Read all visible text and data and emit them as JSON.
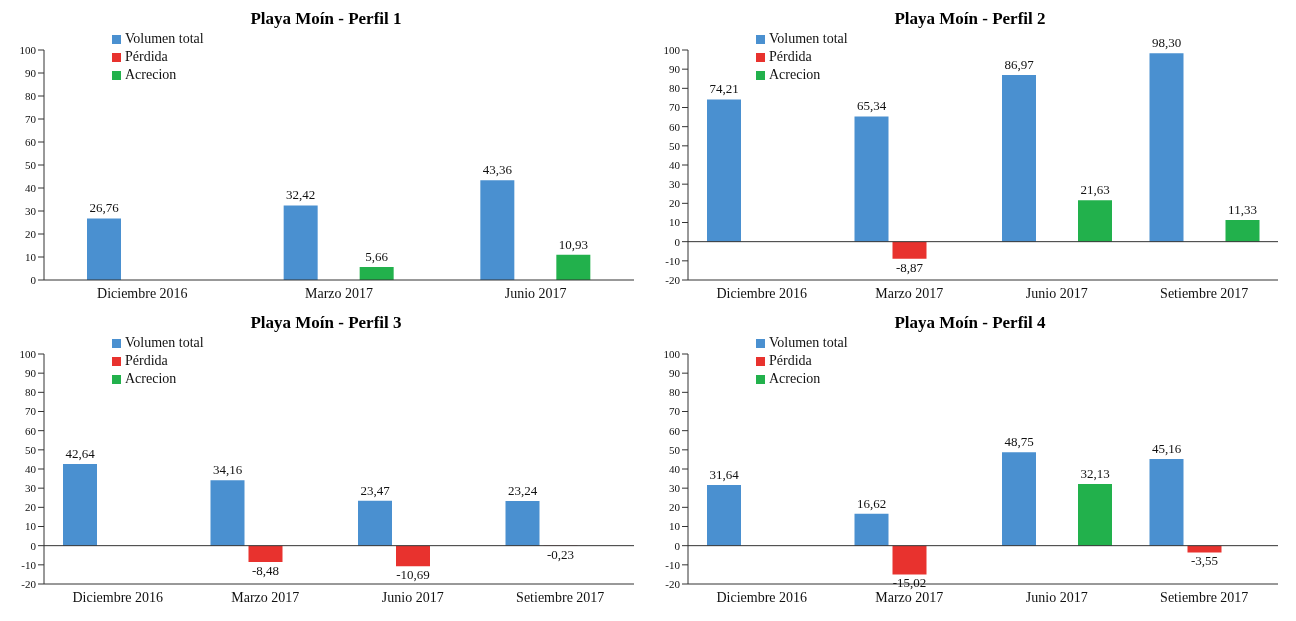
{
  "chart_data": [
    {
      "type": "bar",
      "title": "Playa Moín - Perfil 1",
      "categories": [
        "Diciembre 2016",
        "Marzo 2017",
        "Junio 2017"
      ],
      "ylim": [
        0,
        100
      ],
      "yticks": [
        0,
        10,
        20,
        30,
        40,
        50,
        60,
        70,
        80,
        90,
        100
      ],
      "legend": "top left",
      "series": [
        {
          "name": "Volumen total",
          "color": "#4a90d0",
          "values": [
            26.76,
            32.42,
            43.36
          ],
          "value_labels": [
            "26,76",
            "32,42",
            "43,36"
          ]
        },
        {
          "name": "Pérdida",
          "color": "#e8322e",
          "values": [
            null,
            null,
            null
          ]
        },
        {
          "name": "Acrecion",
          "color": "#22b14c",
          "values": [
            null,
            5.66,
            10.93
          ],
          "value_labels": [
            null,
            "5,66",
            "10,93"
          ]
        }
      ]
    },
    {
      "type": "bar",
      "title": "Playa Moín - Perfil 2",
      "categories": [
        "Diciembre 2016",
        "Marzo 2017",
        "Junio 2017",
        "Setiembre 2017"
      ],
      "ylim": [
        -20,
        100
      ],
      "yticks": [
        -20,
        -10,
        0,
        10,
        20,
        30,
        40,
        50,
        60,
        70,
        80,
        90,
        100
      ],
      "legend": "top left",
      "series": [
        {
          "name": "Volumen total",
          "color": "#4a90d0",
          "values": [
            74.21,
            65.34,
            86.97,
            98.3
          ],
          "value_labels": [
            "74,21",
            "65,34",
            "86,97",
            "98,30"
          ]
        },
        {
          "name": "Pérdida",
          "color": "#e8322e",
          "values": [
            null,
            -8.87,
            null,
            null
          ],
          "value_labels": [
            null,
            "-8,87",
            null,
            null
          ]
        },
        {
          "name": "Acrecion",
          "color": "#22b14c",
          "values": [
            null,
            null,
            21.63,
            11.33
          ],
          "value_labels": [
            null,
            null,
            "21,63",
            "11,33"
          ]
        }
      ]
    },
    {
      "type": "bar",
      "title": "Playa Moín - Perfil 3",
      "categories": [
        "Diciembre 2016",
        "Marzo 2017",
        "Junio 2017",
        "Setiembre 2017"
      ],
      "ylim": [
        -20,
        100
      ],
      "yticks": [
        -20,
        -10,
        0,
        10,
        20,
        30,
        40,
        50,
        60,
        70,
        80,
        90,
        100
      ],
      "legend": "top left",
      "series": [
        {
          "name": "Volumen total",
          "color": "#4a90d0",
          "values": [
            42.64,
            34.16,
            23.47,
            23.24
          ],
          "value_labels": [
            "42,64",
            "34,16",
            "23,47",
            "23,24"
          ]
        },
        {
          "name": "Pérdida",
          "color": "#e8322e",
          "values": [
            null,
            -8.48,
            -10.69,
            -0.23
          ],
          "value_labels": [
            null,
            "-8,48",
            "-10,69",
            "-0,23"
          ]
        },
        {
          "name": "Acrecion",
          "color": "#22b14c",
          "values": [
            null,
            null,
            null,
            null
          ]
        }
      ]
    },
    {
      "type": "bar",
      "title": "Playa Moín - Perfil 4",
      "categories": [
        "Diciembre 2016",
        "Marzo 2017",
        "Junio 2017",
        "Setiembre 2017"
      ],
      "ylim": [
        -20,
        100
      ],
      "yticks": [
        -20,
        -10,
        0,
        10,
        20,
        30,
        40,
        50,
        60,
        70,
        80,
        90,
        100
      ],
      "legend": "top left",
      "series": [
        {
          "name": "Volumen total",
          "color": "#4a90d0",
          "values": [
            31.64,
            16.62,
            48.75,
            45.16
          ],
          "value_labels": [
            "31,64",
            "16,62",
            "48,75",
            "45,16"
          ]
        },
        {
          "name": "Pérdida",
          "color": "#e8322e",
          "values": [
            null,
            -15.02,
            null,
            -3.55
          ],
          "value_labels": [
            null,
            "-15,02",
            null,
            "-3,55"
          ]
        },
        {
          "name": "Acrecion",
          "color": "#22b14c",
          "values": [
            null,
            null,
            32.13,
            null
          ],
          "value_labels": [
            null,
            null,
            "32,13",
            null
          ]
        }
      ]
    }
  ]
}
